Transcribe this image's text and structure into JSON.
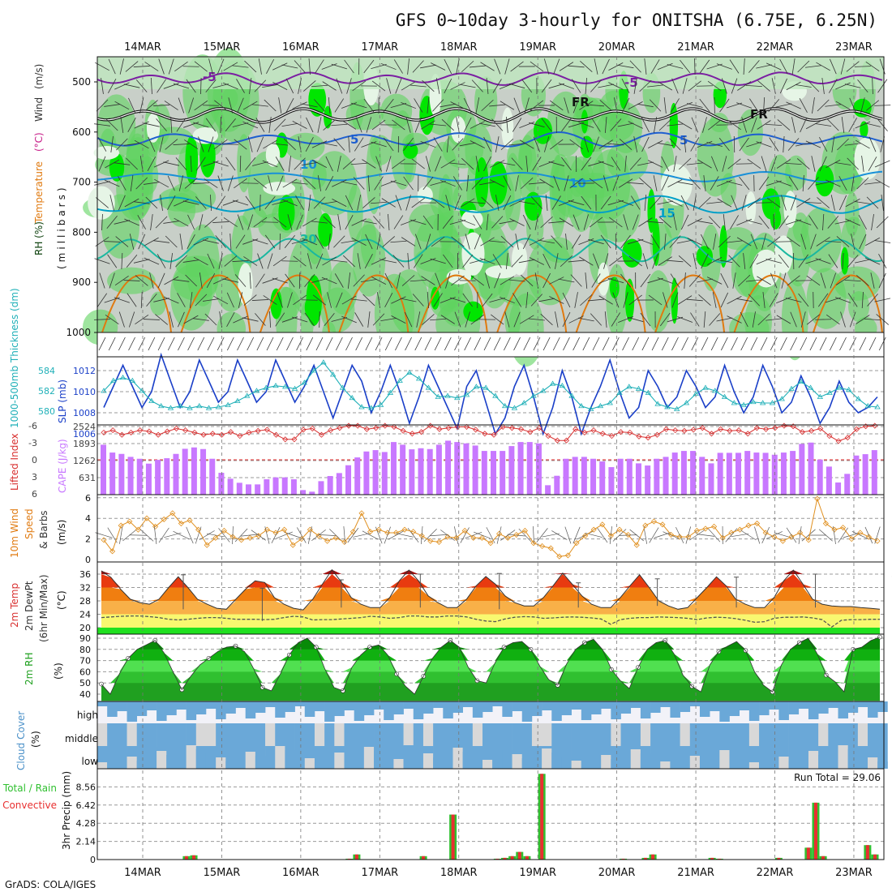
{
  "header": {
    "title": "GFS 0~10day 3-hourly for ONITSHA (6.75E, 6.25N)",
    "credit": "GrADS: COLA/IGES"
  },
  "colors": {
    "rh_light": "#e6f5e6",
    "rh_mid": "#bfe8bf",
    "rh_green": "#5fd35f",
    "rh_bright": "#00e600",
    "gray": "#c8cfc8",
    "temp_purple": "#7b1fa2",
    "temp_blue": "#1e5fd0",
    "temp_cyan": "#00a0c8",
    "temp_teal": "#1ab8a0",
    "temp_orange": "#e07a10",
    "slp": "#1a3fc8",
    "thick": "#20b0b8",
    "cape": "#c878ff",
    "li": "#d83030",
    "wind": "#e09020",
    "cloud": "#6aa8d8",
    "precip_total": "#30c030",
    "precip_conv": "#e83030"
  },
  "chart_data": [
    {
      "type": "heatmap",
      "id": "upper-air",
      "y_axis_labels": [
        "500",
        "600",
        "700",
        "800",
        "900",
        "1000"
      ],
      "ylabel_parts": [
        "RH (%)",
        "Temperature",
        "(°C)",
        "Wind",
        "(m/s)",
        "(millibars)"
      ],
      "contour_labels": [
        "-5",
        "-5",
        "FR",
        "FR",
        "5",
        "5",
        "10",
        "10",
        "15",
        "20"
      ],
      "date_labels": [
        "14MAR",
        "15MAR",
        "16MAR",
        "17MAR",
        "18MAR",
        "19MAR",
        "20MAR",
        "21MAR",
        "22MAR",
        "23MAR"
      ]
    },
    {
      "type": "line",
      "id": "slp-thickness",
      "ylabel": "1000-500mb Thickness (dm)",
      "ylabel2": "SLP (mb)",
      "left_ticks": [
        "584",
        "582",
        "580"
      ],
      "right_ticks": [
        "1012",
        "1010",
        "1008",
        "1006"
      ],
      "series": [
        {
          "name": "SLP",
          "values": [
            1008.5,
            1010.5,
            1012.5,
            1010.5,
            1008.5,
            1010,
            1013.5,
            1011,
            1008.5,
            1010,
            1013,
            1011,
            1009,
            1010,
            1013,
            1011,
            1009,
            1010,
            1013,
            1011,
            1009,
            1010.5,
            1012.5,
            1010,
            1007.5,
            1010,
            1012.5,
            1011,
            1008,
            1010,
            1012.5,
            1010,
            1007,
            1009.5,
            1012.5,
            1010.5,
            1008.5,
            1006.5,
            1010.5,
            1012,
            1009,
            1006,
            1007.5,
            1010.5,
            1012.5,
            1009.5,
            1006,
            1008.5,
            1012,
            1009.5,
            1006,
            1008.5,
            1010.5,
            1013,
            1010,
            1007.5,
            1008.5,
            1012,
            1010.5,
            1008.5,
            1009.5,
            1012,
            1010.5,
            1008.5,
            1009.5,
            1012.5,
            1010,
            1008,
            1009.5,
            1012.5,
            1010.5,
            1008,
            1009,
            1011.5,
            1009.5,
            1007,
            1008.5,
            1011,
            1009,
            1008,
            1008.5,
            1009.5
          ]
        },
        {
          "name": "Thickness",
          "values": [
            582,
            583,
            583.3,
            583,
            582,
            581,
            580.5,
            580.3,
            580.5,
            580.3,
            580.5,
            580.3,
            580.4,
            580.6,
            581,
            581.5,
            582,
            582.3,
            582.5,
            582.4,
            582.2,
            582.8,
            584,
            584.8,
            583.6,
            582.3,
            581.3,
            580.4,
            580.3,
            580.6,
            581.8,
            583,
            583.8,
            583.2,
            582.3,
            581.4,
            581.5,
            581.3,
            581.6,
            582.4,
            582.3,
            581.5,
            580.5,
            580.3,
            580.8,
            581.5,
            582,
            582.7,
            582.5,
            581.5,
            580.5,
            580.2,
            580.5,
            580.8,
            581.8,
            582.4,
            582.2,
            581.8,
            580.7,
            580.4,
            580.2,
            580.8,
            581.7,
            582.3,
            582,
            581.4,
            580.8,
            580.6,
            580.9,
            580.8,
            580.8,
            581.2,
            582.2,
            582.9,
            582.3,
            581.4,
            581.8,
            582.3,
            582.1,
            581.2,
            580.5,
            580.4
          ]
        }
      ]
    },
    {
      "type": "bar",
      "id": "cape-li",
      "ylabel": "Lifted Index",
      "ylabel2": "CAPE (J/kg)",
      "left_ticks": [
        "-6",
        "-3",
        "0",
        "3",
        "6"
      ],
      "right_ticks": [
        "2524",
        "1893",
        "1262",
        "631"
      ],
      "series": [
        {
          "name": "CAPE",
          "values": [
            1850,
            1560,
            1510,
            1400,
            1330,
            1150,
            1290,
            1350,
            1510,
            1700,
            1750,
            1690,
            1330,
            810,
            590,
            440,
            380,
            380,
            570,
            640,
            640,
            570,
            170,
            110,
            500,
            690,
            800,
            1090,
            1380,
            1600,
            1650,
            1580,
            1950,
            1850,
            1680,
            1720,
            1690,
            1850,
            2000,
            1950,
            1900,
            1820,
            1620,
            1620,
            1620,
            1800,
            1950,
            1950,
            1900,
            350,
            700,
            1330,
            1400,
            1400,
            1330,
            1230,
            1020,
            1330,
            1330,
            1160,
            1080,
            1330,
            1400,
            1560,
            1620,
            1620,
            1400,
            1160,
            1550,
            1550,
            1550,
            1620,
            1560,
            1550,
            1480,
            1560,
            1620,
            1880,
            1930,
            1300,
            1040,
            450,
            770,
            1450,
            1500,
            1650
          ]
        },
        {
          "name": "LI",
          "values": [
            -4.8,
            -5.2,
            -4.4,
            -4.8,
            -5.2,
            -5,
            -4.4,
            -5,
            -5.5,
            -5.2,
            -4.8,
            -4.4,
            -4.6,
            -4.4,
            -4.9,
            -4.2,
            -4.8,
            -5.1,
            -5.3,
            -4.4,
            -3.6,
            -3.6,
            -5.3,
            -5.5,
            -4.4,
            -5.2,
            -5.6,
            -6,
            -6,
            -5.4,
            -5.6,
            -6,
            -5.8,
            -5.1,
            -4.6,
            -4.9,
            -6,
            -5.4,
            -5.6,
            -5.8,
            -5.8,
            -5.3,
            -4.6,
            -4.4,
            -5.8,
            -5.6,
            -5.4,
            -4.9,
            -5.6,
            -4.2,
            -3.4,
            -3.4,
            -5.4,
            -4.8,
            -5.2,
            -4.6,
            -4.2,
            -4.9,
            -4.8,
            -4.1,
            -3.9,
            -4.4,
            -5.4,
            -5.2,
            -5.1,
            -5.3,
            -5.6,
            -4.6,
            -5.4,
            -5.1,
            -5.2,
            -4.6,
            -5.6,
            -5.4,
            -5.6,
            -6,
            -5.9,
            -4.9,
            -5.1,
            -5.5,
            -4.2,
            -3.3,
            -3.9,
            -5.4,
            -5.9,
            -6
          ]
        }
      ]
    },
    {
      "type": "line",
      "id": "wind10m",
      "ylabel_parts": [
        "10m Wind",
        "Speed",
        "& Barbs",
        "(m/s)"
      ],
      "ticks": [
        "6",
        "4",
        "2",
        "0"
      ],
      "series": [
        {
          "name": "Wind speed",
          "values": [
            1.9,
            0.8,
            3.3,
            3.7,
            2.9,
            4,
            3.2,
            3.9,
            4.5,
            3.5,
            3.8,
            2.9,
            1.4,
            2.1,
            2.8,
            2.2,
            1.9,
            2.1,
            2.3,
            2.9,
            2.6,
            2.9,
            1.4,
            2,
            2.9,
            2.3,
            1.8,
            2.1,
            1.7,
            2.7,
            4.5,
            2.7,
            2.9,
            2.6,
            2.6,
            2.9,
            2.7,
            2.3,
            1.8,
            1.7,
            2.2,
            2.1,
            2.8,
            2.1,
            2.1,
            1.6,
            2.5,
            2.1,
            2.4,
            2.8,
            1.6,
            1.3,
            1.1,
            0.3,
            0.4,
            1.6,
            2.3,
            2.9,
            3.4,
            2.3,
            2.9,
            2.4,
            1.4,
            3.3,
            3.7,
            3.4,
            2.4,
            2.2,
            2.2,
            2.8,
            3,
            3.2,
            2.1,
            2.6,
            2.9,
            3.3,
            3.5,
            2.6,
            2.2,
            1.8,
            2.2,
            2.6,
            1.9,
            5.9,
            3.5,
            2.9,
            3.1,
            2,
            2.6,
            2.2,
            1.8
          ]
        }
      ]
    },
    {
      "type": "area",
      "id": "temp2m",
      "ylabel_parts": [
        "2m Temp",
        "2m DewPt",
        "(6hr Min/Max)",
        "(°C)"
      ],
      "ticks": [
        "36",
        "32",
        "28",
        "24",
        "20"
      ],
      "series": [
        {
          "name": "Temp",
          "values": [
            37,
            35,
            31.5,
            28.5,
            27.5,
            27,
            28.5,
            32,
            35.2,
            32,
            28.5,
            27,
            25.8,
            25.5,
            28.5,
            31.5,
            34,
            33.5,
            29,
            27,
            25.8,
            25.3,
            28.5,
            33,
            37.3,
            33.5,
            29,
            27,
            26,
            26,
            29,
            34,
            37.2,
            34,
            29.5,
            27.5,
            26,
            26,
            28.5,
            32.5,
            35.3,
            33,
            29.5,
            27.5,
            26.5,
            26.5,
            29,
            32.5,
            36.3,
            33,
            29.5,
            27,
            26,
            26,
            29,
            32.5,
            35.8,
            32,
            28,
            26.5,
            25.5,
            26,
            29,
            32,
            35.2,
            32.5,
            28.5,
            27,
            26,
            26,
            29,
            34,
            37.2,
            33,
            28.5,
            27,
            26.5,
            26.3,
            26.3,
            26,
            25.8,
            25.5
          ]
        },
        {
          "name": "DewPt",
          "values": [
            23,
            23.2,
            23.4,
            23.5,
            23.5,
            23.3,
            23,
            22.5,
            22.3,
            22.5,
            22.8,
            23,
            23,
            22.8,
            22.5,
            22.5,
            22.5,
            22.4,
            22.5,
            23,
            23.4,
            23.2,
            22.3,
            22.4,
            22.4,
            22.6,
            22.8,
            23,
            23.4,
            23.2,
            22.8,
            23,
            23.5,
            23.5,
            23.2,
            23.2,
            23.5,
            23.5,
            23.2,
            22.5,
            22,
            21.8,
            22.6,
            23.1,
            23.3,
            23.2,
            22.8,
            22.9,
            23.1,
            23.2,
            23.1,
            22.9,
            22.6,
            21,
            22.4,
            22.8,
            23,
            23,
            23.2,
            23.1,
            23,
            22.8,
            22.4,
            22.9,
            23.1,
            23,
            22.7,
            22.2,
            21.6,
            21.8,
            22.8,
            23.1,
            23.1,
            23.2,
            22.9,
            22.4,
            20.2,
            22.2,
            22.4,
            22.4,
            22.5,
            22.5
          ]
        }
      ],
      "minmax": [
        [
          25.5,
          35.8
        ],
        [
          22,
          31.8
        ],
        [
          26,
          34.3
        ],
        [
          26,
          36
        ],
        [
          25.5,
          36.2
        ],
        [
          26,
          33.4
        ],
        [
          26.5,
          34.6
        ],
        [
          26,
          35.1
        ],
        [
          26,
          36
        ],
        [
          26,
          35.3
        ]
      ]
    },
    {
      "type": "area",
      "id": "rh2m",
      "ylabel": "2m RH",
      "unit": "(%)",
      "ticks": [
        "90",
        "80",
        "70",
        "60",
        "50",
        "40"
      ],
      "series": [
        {
          "name": "RH",
          "values": [
            49,
            40,
            58,
            72,
            80,
            84,
            88,
            77,
            60,
            44,
            56,
            66,
            72,
            78,
            82,
            83,
            78,
            63,
            46,
            43,
            58,
            75,
            86,
            90,
            82,
            62,
            46,
            43,
            64,
            75,
            82,
            84,
            75,
            58,
            47,
            40,
            56,
            72,
            82,
            88,
            82,
            64,
            52,
            50,
            68,
            82,
            86,
            87,
            80,
            65,
            53,
            48,
            67,
            80,
            86,
            89,
            80,
            62,
            52,
            45,
            64,
            80,
            86,
            88,
            76,
            57,
            47,
            42,
            66,
            78,
            83,
            87,
            79,
            60,
            48,
            42,
            66,
            80,
            86,
            90,
            76,
            57,
            51,
            42,
            80,
            82,
            88,
            91
          ]
        }
      ]
    },
    {
      "type": "heatmap",
      "id": "cloud-cover",
      "ylabel": "Cloud Cover",
      "unit": "(%)",
      "row_labels": [
        "high",
        "middle",
        "low"
      ]
    },
    {
      "type": "bar",
      "id": "precip",
      "ylabel_parts": [
        "Total / Rain",
        "Convective",
        "3hr Precip (mm)"
      ],
      "ticks": [
        "8.56",
        "6.42",
        "4.28",
        "2.14",
        "0"
      ],
      "run_total": "Run Total = 29.06",
      "series": [
        {
          "name": "Precip",
          "bars": [
            [
              11,
              0.4
            ],
            [
              12,
              0.5
            ],
            [
              33,
              0.1
            ],
            [
              34,
              0.6
            ],
            [
              43,
              0.4
            ],
            [
              47,
              5.3
            ],
            [
              53,
              0.1
            ],
            [
              54,
              0.2
            ],
            [
              55,
              0.4
            ],
            [
              56,
              0.9
            ],
            [
              57,
              0.4
            ],
            [
              59,
              10.1
            ],
            [
              70,
              0.1
            ],
            [
              73,
              0.2
            ],
            [
              74,
              0.6
            ],
            [
              82,
              0.2
            ],
            [
              83,
              0.1
            ],
            [
              91,
              0.2
            ],
            [
              95,
              1.4
            ],
            [
              96,
              6.7
            ],
            [
              97,
              0.4
            ],
            [
              103,
              1.7
            ],
            [
              104,
              0.6
            ]
          ]
        }
      ]
    }
  ]
}
